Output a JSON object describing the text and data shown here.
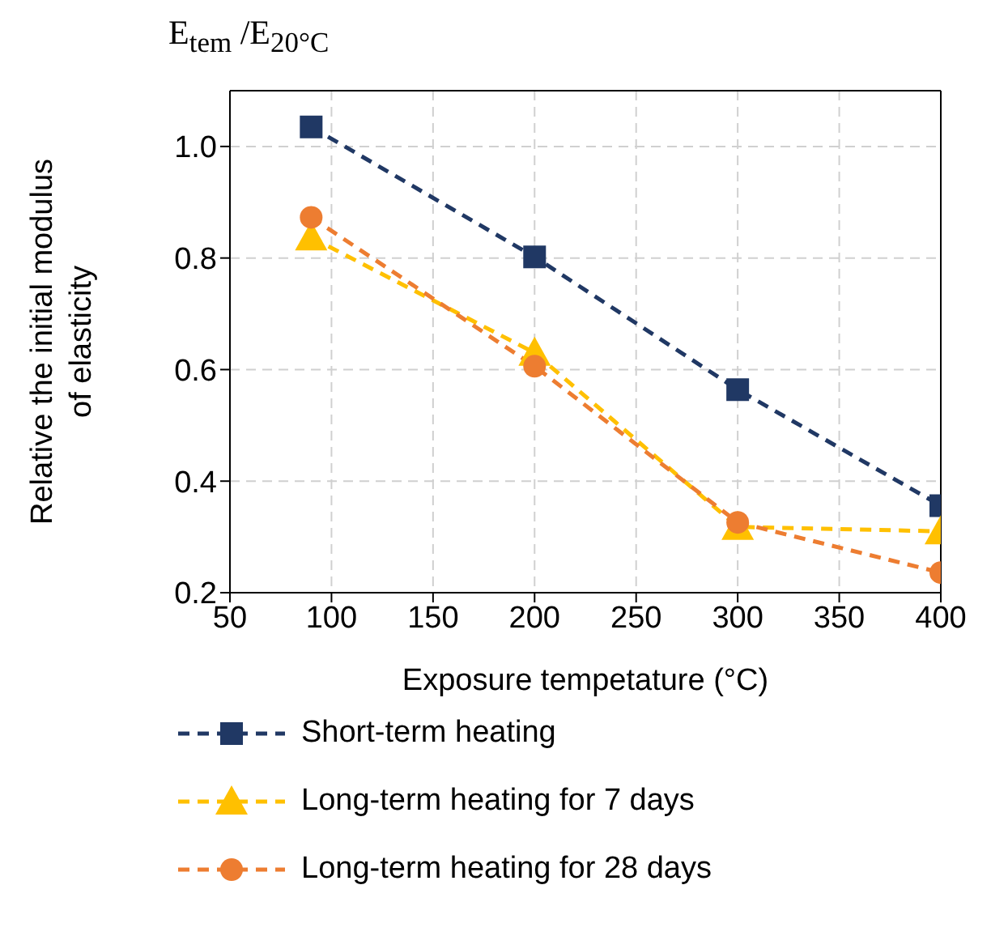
{
  "chart_data": {
    "type": "line",
    "title": "E$_{tem}$ /E$_{20°C}$",
    "xlabel": "Exposure tempetature (°C)",
    "ylabel": "Relative the initial modulus of elasticity",
    "x": [
      90,
      200,
      300,
      400
    ],
    "series": [
      {
        "name": "Short-term heating",
        "color": "#203864",
        "marker": "square",
        "values": [
          1.035,
          0.802,
          0.564,
          0.356
        ]
      },
      {
        "name": "Long-term heating for 7 days",
        "color": "#ffc000",
        "marker": "triangle",
        "values": [
          0.837,
          0.63,
          0.318,
          0.31
        ]
      },
      {
        "name": "Long-term heating for 28 days",
        "color": "#ed7d31",
        "marker": "circle",
        "values": [
          0.873,
          0.606,
          0.326,
          0.236
        ]
      }
    ],
    "xlim": [
      50,
      400
    ],
    "xticks": [
      50,
      100,
      150,
      200,
      250,
      300,
      350,
      400
    ],
    "ylim": [
      0.2,
      1.1
    ],
    "yticks": [
      {
        "value": 0.2,
        "label": "0.2"
      },
      {
        "value": 0.4,
        "label": "0.4"
      },
      {
        "value": 0.6,
        "label": "0.6"
      },
      {
        "value": 0.8,
        "label": "0.8"
      },
      {
        "value": 1.0,
        "label": "1.0"
      }
    ],
    "grid": true,
    "legend": "bottom",
    "line_style": "dashed"
  }
}
